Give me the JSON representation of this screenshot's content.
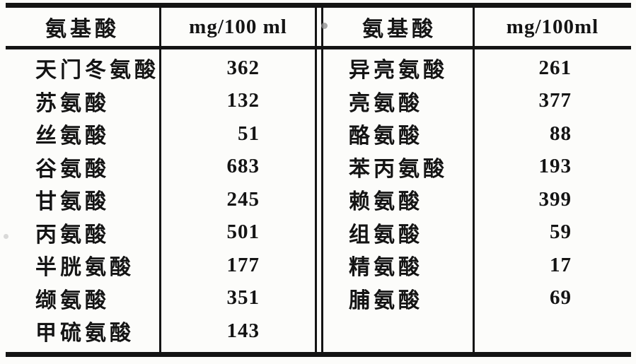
{
  "table": {
    "left": {
      "header": {
        "col1": "氨基酸",
        "col2": "mg/100 ml"
      },
      "rows": [
        {
          "name": "天门冬氨酸",
          "value": "362"
        },
        {
          "name": "苏氨酸",
          "value": "132"
        },
        {
          "name": "丝氨酸",
          "value": "51"
        },
        {
          "name": "谷氨酸",
          "value": "683"
        },
        {
          "name": "甘氨酸",
          "value": "245"
        },
        {
          "name": "丙氨酸",
          "value": "501"
        },
        {
          "name": "半胱氨酸",
          "value": "177"
        },
        {
          "name": "缬氨酸",
          "value": "351"
        },
        {
          "name": "甲硫氨酸",
          "value": "143"
        }
      ]
    },
    "right": {
      "header": {
        "col1": "氨基酸",
        "col2": "mg/100ml"
      },
      "rows": [
        {
          "name": "异亮氨酸",
          "value": "261"
        },
        {
          "name": "亮氨酸",
          "value": "377"
        },
        {
          "name": "酪氨酸",
          "value": "88"
        },
        {
          "name": "苯丙氨酸",
          "value": "193"
        },
        {
          "name": "赖氨酸",
          "value": "399"
        },
        {
          "name": "组氨酸",
          "value": "59"
        },
        {
          "name": "精氨酸",
          "value": "17"
        },
        {
          "name": "脯氨酸",
          "value": "69"
        }
      ]
    }
  },
  "colors": {
    "ink": "#141414",
    "paper": "#fcfcfa"
  }
}
